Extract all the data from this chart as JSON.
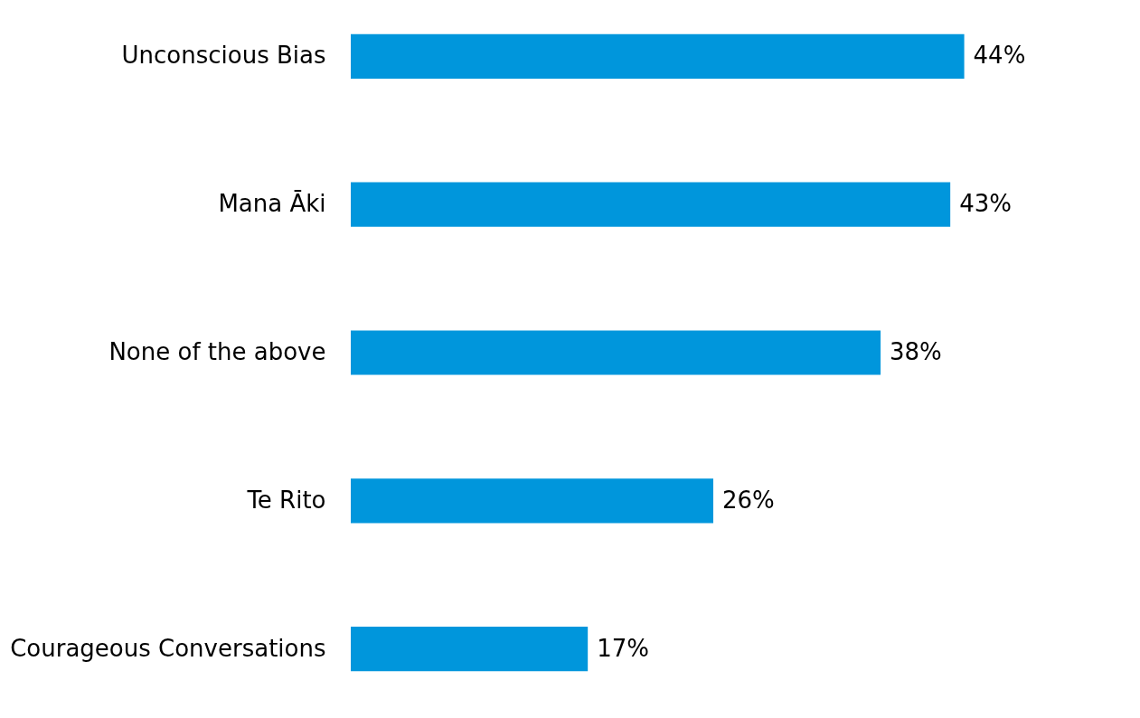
{
  "chart_data": {
    "type": "bar",
    "orientation": "horizontal",
    "categories": [
      "Unconscious Bias",
      "Mana Āki",
      "None of the above",
      "Te Rito",
      "Courageous Conversations"
    ],
    "values": [
      44,
      43,
      38,
      26,
      17
    ],
    "value_labels": [
      "44%",
      "43%",
      "38%",
      "26%",
      "17%"
    ],
    "color": "#0096dc",
    "grid": false
  }
}
